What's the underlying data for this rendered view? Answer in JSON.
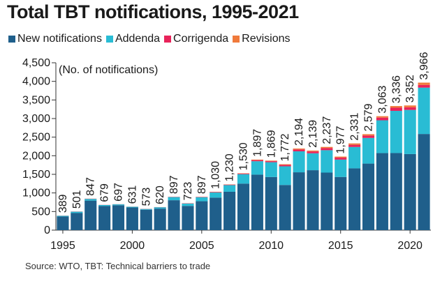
{
  "chart_data": {
    "type": "bar",
    "stacked": true,
    "title": "Total TBT notifications, 1995-2021",
    "ylabel": "(No. of notifications)",
    "source": "Source: WTO, TBT: Technical barriers to trade",
    "ylim": [
      0,
      4500
    ],
    "yticks": [
      0,
      500,
      1000,
      1500,
      2000,
      2500,
      3000,
      3500,
      4000,
      4500
    ],
    "ytick_labels": [
      "0",
      "500",
      "1,000",
      "1,500",
      "2,000",
      "2,500",
      "3,000",
      "3,500",
      "4,000",
      "4,500"
    ],
    "xtick_labels": [
      "1995",
      "2000",
      "2005",
      "2010",
      "2015",
      "2020"
    ],
    "xtick_positions": [
      1995,
      2000,
      2005,
      2010,
      2015,
      2020
    ],
    "legend_position": "top-left",
    "categories": [
      1995,
      1996,
      1997,
      1998,
      1999,
      2000,
      2001,
      2002,
      2003,
      2004,
      2005,
      2006,
      2007,
      2008,
      2009,
      2010,
      2011,
      2012,
      2013,
      2014,
      2015,
      2016,
      2017,
      2018,
      2019,
      2020,
      2021
    ],
    "totals": [
      389,
      501,
      847,
      679,
      697,
      631,
      573,
      620,
      897,
      723,
      897,
      1030,
      1230,
      1530,
      1897,
      1869,
      1772,
      2194,
      2139,
      2237,
      1977,
      2331,
      2579,
      3063,
      3336,
      3352,
      3966
    ],
    "total_labels": [
      "389",
      "501",
      "847",
      "679",
      "697",
      "631",
      "573",
      "620",
      "897",
      "723",
      "897",
      "1,030",
      "1,230",
      "1,530",
      "1,897",
      "1,869",
      "1,772",
      "2,194",
      "2,139",
      "2,237",
      "1,977",
      "2,331",
      "2,579",
      "3,063",
      "3,336",
      "3,352",
      "3,966"
    ],
    "series": [
      {
        "name": "New notifications",
        "color": "#1f5f8b",
        "values": [
          365,
          460,
          794,
          648,
          669,
          609,
          549,
          579,
          804,
          651,
          777,
          875,
          1032,
          1251,
          1492,
          1429,
          1214,
          1555,
          1611,
          1547,
          1430,
          1661,
          1789,
          2071,
          2073,
          2046,
          2585
        ]
      },
      {
        "name": "Addenda",
        "color": "#29bcd4",
        "values": [
          20,
          36,
          46,
          27,
          24,
          19,
          20,
          36,
          85,
          63,
          109,
          137,
          179,
          254,
          361,
          397,
          502,
          564,
          455,
          602,
          466,
          575,
          690,
          882,
          1134,
          1186,
          1246
        ]
      },
      {
        "name": "Corrigenda",
        "color": "#e8235a",
        "values": [
          3,
          4,
          5,
          3,
          3,
          2,
          3,
          4,
          6,
          7,
          8,
          13,
          13,
          17,
          29,
          28,
          39,
          50,
          49,
          55,
          53,
          58,
          64,
          71,
          84,
          70,
          73
        ]
      },
      {
        "name": "Revisions",
        "color": "#f07a3b",
        "values": [
          1,
          1,
          2,
          1,
          1,
          1,
          1,
          1,
          2,
          2,
          3,
          5,
          6,
          8,
          15,
          15,
          17,
          25,
          24,
          33,
          28,
          37,
          36,
          39,
          45,
          50,
          62
        ]
      }
    ]
  }
}
